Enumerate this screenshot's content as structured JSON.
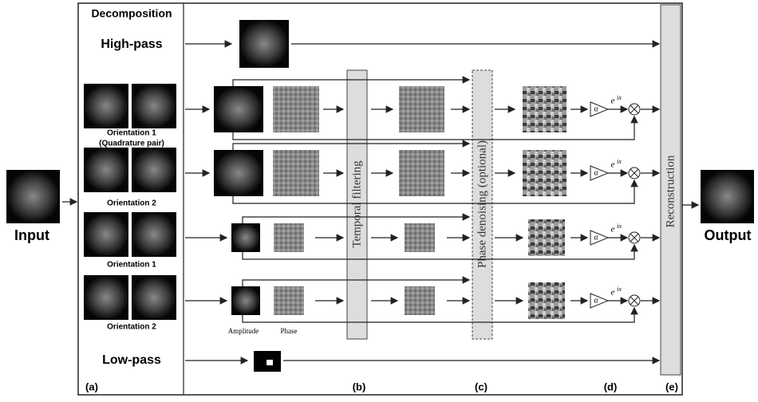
{
  "input_label": "Input",
  "output_label": "Output",
  "decomposition": {
    "title": "Decomposition",
    "high_pass": "High-pass",
    "low_pass": "Low-pass",
    "orientations": [
      {
        "label": "Orientation 1",
        "note": "(Quadrature pair)"
      },
      {
        "label": "Orientation 2"
      },
      {
        "label": "Orientation 1"
      },
      {
        "label": "Orientation 2"
      }
    ]
  },
  "stages": {
    "temporal": "Temporal filtering",
    "denoise": "Phase denoising (optional)",
    "reconstruction": "Reconstruction"
  },
  "column_labels": {
    "amplitude": "Amplitude",
    "phase": "Phase"
  },
  "gain": {
    "symbol": "α",
    "phase_base": "e",
    "phase_exponent": "ix"
  },
  "panel_labels": [
    "(a)",
    "(b)",
    "(c)",
    "(d)",
    "(e)"
  ]
}
